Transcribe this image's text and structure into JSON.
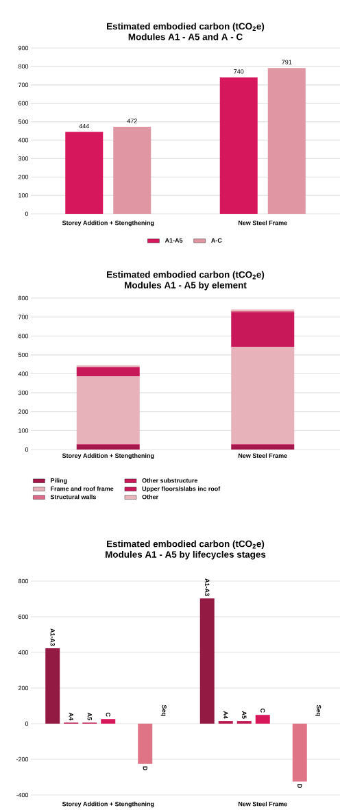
{
  "chart_data": [
    {
      "type": "bar",
      "title": "Estimated embodied carbon (tCO$_{2}$e)",
      "subtitle": "Modules A1 - A5 and A - C",
      "categories": [
        "Storey Addition + Stengthening",
        "New Steel Frame"
      ],
      "series": [
        {
          "name": "A1-A5",
          "color": "#d6175c",
          "values": [
            444,
            740
          ],
          "value_labels": [
            "444",
            "740"
          ]
        },
        {
          "name": "A-C",
          "color": "#e097a3",
          "values": [
            472,
            791
          ],
          "value_labels": [
            "472",
            "791"
          ]
        }
      ],
      "ylim": [
        0,
        900
      ],
      "yticks": [
        0,
        100,
        200,
        300,
        400,
        500,
        600,
        700,
        800,
        900
      ],
      "grid": "y",
      "legend": "bottom"
    },
    {
      "type": "bar",
      "stacked": true,
      "title": "Estimated embodied carbon (tCO$_{2}$e)",
      "subtitle": "Modules A1 - A5 by element",
      "categories": [
        "Storey Addition + Stengthening",
        "New Steel Frame"
      ],
      "series": [
        {
          "name": "Piling",
          "color": "#a3174a",
          "values": [
            25,
            25
          ]
        },
        {
          "name": "Other substructure",
          "color": "#c9195a",
          "values": [
            3,
            3
          ]
        },
        {
          "name": "Frame and roof frame",
          "color": "#e8b2ba",
          "values": [
            359,
            515
          ]
        },
        {
          "name": "Upper floors/slabs inc roof",
          "color": "#c8185a",
          "values": [
            48,
            184
          ]
        },
        {
          "name": "Structural walls",
          "color": "#d96a88",
          "values": [
            null,
            4
          ]
        },
        {
          "name": "Other",
          "color": "#eab6be",
          "values": [
            9,
            9
          ]
        }
      ],
      "ylim": [
        0,
        800
      ],
      "yticks": [
        0,
        100,
        200,
        300,
        400,
        500,
        600,
        700,
        800
      ],
      "grid": "y",
      "legend": "bottom left"
    },
    {
      "type": "bar",
      "title": "Estimated embodied carbon (tCO$_{2}$e)",
      "subtitle": "Modules A1 - A5 by lifecycles stages",
      "categories": [
        "Storey Addition + Stengthening",
        "New Steel Frame"
      ],
      "series": [
        {
          "name": "A1-A3",
          "color": "#931a43",
          "values": [
            423,
            703
          ]
        },
        {
          "name": "A4",
          "color": "#b8174c",
          "values": [
            6,
            15
          ]
        },
        {
          "name": "A5",
          "color": "#c21a54",
          "values": [
            6,
            15
          ]
        },
        {
          "name": "C",
          "color": "#d8175a",
          "values": [
            26,
            49
          ]
        },
        {
          "name": "D",
          "color": "#de7486",
          "values": [
            -226,
            -325
          ]
        },
        {
          "name": "Seq",
          "values": [
            0,
            0
          ]
        }
      ],
      "ylim": [
        -400,
        800
      ],
      "yticks": [
        -400,
        -200,
        0,
        200,
        400,
        600,
        800
      ],
      "grid": "y",
      "legend": false
    }
  ]
}
